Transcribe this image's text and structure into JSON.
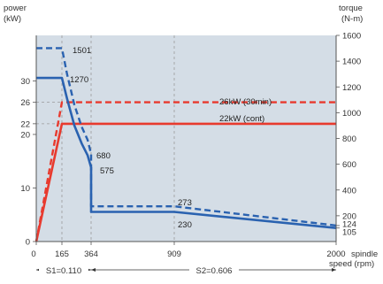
{
  "chart_data": {
    "type": "line",
    "left_axis": {
      "label_lines": [
        "power",
        "(kW)"
      ],
      "ticks": [
        {
          "value": 0,
          "label": "0"
        },
        {
          "value": 10,
          "label": "10"
        },
        {
          "value": 20,
          "label": "20"
        },
        {
          "value": 22,
          "label": "22"
        },
        {
          "value": 26,
          "label": "26"
        },
        {
          "value": 30,
          "label": "30"
        }
      ],
      "range": [
        0,
        38.5
      ]
    },
    "right_axis": {
      "label_lines": [
        "torque",
        "(N-m)"
      ],
      "ticks": [
        {
          "value": 105,
          "label": "105"
        },
        {
          "value": 124,
          "label": "124"
        },
        {
          "value": 200,
          "label": "200"
        },
        {
          "value": 400,
          "label": "400"
        },
        {
          "value": 600,
          "label": "600"
        },
        {
          "value": 800,
          "label": "800"
        },
        {
          "value": 1000,
          "label": "1000"
        },
        {
          "value": 1200,
          "label": "1200"
        },
        {
          "value": 1400,
          "label": "1400"
        },
        {
          "value": 1600,
          "label": "1600"
        }
      ],
      "range": [
        0,
        1600
      ]
    },
    "x_axis": {
      "label_lines": [
        "spindle",
        "speed (rpm)"
      ],
      "ticks": [
        {
          "value": 0,
          "label": "0"
        },
        {
          "value": 165,
          "label": "165"
        },
        {
          "value": 364,
          "label": "364"
        },
        {
          "value": 909,
          "label": "909"
        },
        {
          "value": 2000,
          "label": "2000"
        }
      ]
    },
    "guides_x": [
      165,
      364,
      909
    ],
    "guides_y_power": [
      22,
      26
    ],
    "series": [
      {
        "name": "26kW (30min)",
        "axis": "power",
        "color": "#e83a2e",
        "dash": true,
        "x": [
          0,
          165,
          364,
          909,
          2000
        ],
        "y": [
          0,
          26,
          26,
          26,
          26
        ]
      },
      {
        "name": "22kW (cont)",
        "axis": "power",
        "color": "#e83a2e",
        "dash": false,
        "x": [
          0,
          165,
          364,
          909,
          2000
        ],
        "y": [
          0,
          22,
          22,
          22,
          22
        ]
      },
      {
        "axis": "torque",
        "color": "#2a62b0",
        "dash": true,
        "x": [
          0,
          165,
          200,
          250,
          300,
          340,
          364,
          364,
          909,
          2000
        ],
        "y": [
          1501,
          1501,
          1300,
          1060,
          890,
          790,
          680,
          273,
          273,
          124
        ]
      },
      {
        "axis": "torque",
        "color": "#2a62b0",
        "dash": false,
        "x": [
          0,
          165,
          200,
          250,
          300,
          340,
          364,
          364,
          909,
          2000
        ],
        "y": [
          1270,
          1270,
          1110,
          900,
          760,
          670,
          575,
          230,
          230,
          105
        ]
      }
    ],
    "annotations": {
      "t1501": "1501",
      "t1270": "1270",
      "t680": "680",
      "t575": "575",
      "t273": "273",
      "t230": "230",
      "p26": "26kW (30min)",
      "p22": "22kW (cont)"
    },
    "brackets": {
      "s1": "S1=0.110",
      "s2": "S2=0.606"
    }
  }
}
